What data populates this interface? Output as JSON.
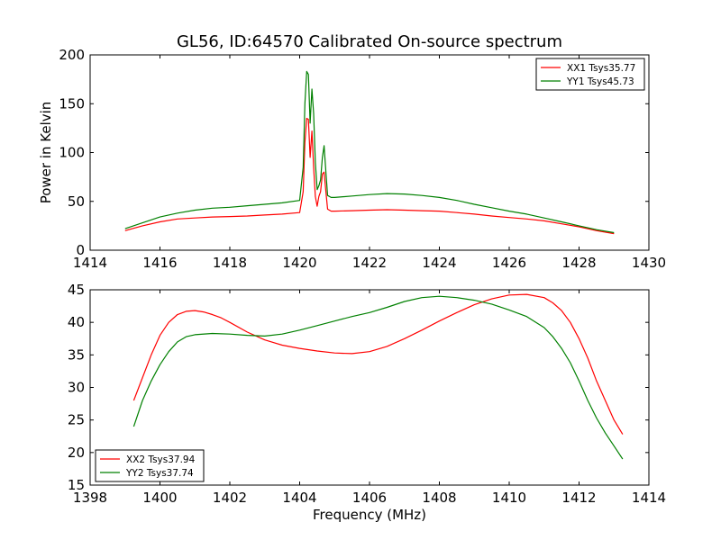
{
  "title": "GL56, ID:64570 Calibrated On-source spectrum",
  "chart_data": [
    {
      "type": "line",
      "ylabel": "Power in Kelvin",
      "xlabel": "",
      "xlim": [
        1414,
        1430
      ],
      "ylim": [
        0,
        200
      ],
      "xticks": [
        1414,
        1416,
        1418,
        1420,
        1422,
        1424,
        1426,
        1428,
        1430
      ],
      "yticks": [
        0,
        50,
        100,
        150,
        200
      ],
      "legend_position": "top-right",
      "series": [
        {
          "name": "XX1 Tsys35.77",
          "color": "#ff0000",
          "x": [
            1415.0,
            1415.5,
            1416.0,
            1416.5,
            1417.0,
            1417.5,
            1418.0,
            1418.5,
            1419.0,
            1419.5,
            1420.0,
            1420.1,
            1420.15,
            1420.2,
            1420.25,
            1420.3,
            1420.35,
            1420.4,
            1420.45,
            1420.5,
            1420.55,
            1420.6,
            1420.65,
            1420.7,
            1420.75,
            1420.8,
            1420.9,
            1421.0,
            1421.5,
            1422.0,
            1422.5,
            1423.0,
            1423.5,
            1424.0,
            1424.5,
            1425.0,
            1425.5,
            1426.0,
            1426.5,
            1427.0,
            1427.5,
            1428.0,
            1428.5,
            1429.0
          ],
          "values": [
            20,
            25,
            29,
            32,
            33,
            34,
            34.5,
            35,
            36,
            37,
            38.5,
            60,
            110,
            135,
            134,
            95,
            122,
            85,
            55,
            45,
            55,
            60,
            78,
            80,
            60,
            42,
            40,
            40,
            40.5,
            41,
            41.5,
            41,
            40.5,
            40,
            38.5,
            37,
            35,
            33.5,
            32,
            30,
            27,
            24,
            20,
            17
          ]
        },
        {
          "name": "YY1 Tsys45.73",
          "color": "#008000",
          "x": [
            1415.0,
            1415.5,
            1416.0,
            1416.5,
            1417.0,
            1417.5,
            1418.0,
            1418.5,
            1419.0,
            1419.5,
            1420.0,
            1420.1,
            1420.15,
            1420.2,
            1420.25,
            1420.3,
            1420.35,
            1420.4,
            1420.45,
            1420.5,
            1420.55,
            1420.6,
            1420.65,
            1420.7,
            1420.75,
            1420.8,
            1420.9,
            1421.0,
            1421.5,
            1422.0,
            1422.5,
            1423.0,
            1423.5,
            1424.0,
            1424.5,
            1425.0,
            1425.5,
            1426.0,
            1426.5,
            1427.0,
            1427.5,
            1428.0,
            1428.5,
            1429.0
          ],
          "values": [
            22,
            28,
            34,
            38,
            41,
            43,
            44,
            45.5,
            47,
            48.5,
            51,
            85,
            150,
            183,
            180,
            130,
            165,
            140,
            90,
            62,
            66,
            72,
            95,
            107,
            80,
            56,
            54,
            54,
            55.5,
            57,
            58,
            57.5,
            56,
            54,
            51,
            47,
            43.5,
            40,
            37,
            33,
            29,
            25,
            21,
            18
          ]
        }
      ]
    },
    {
      "type": "line",
      "ylabel": "",
      "xlabel": "Frequency (MHz)",
      "xlim": [
        1398,
        1414
      ],
      "ylim": [
        15,
        45
      ],
      "xticks": [
        1398,
        1400,
        1402,
        1404,
        1406,
        1408,
        1410,
        1412,
        1414
      ],
      "yticks": [
        15,
        20,
        25,
        30,
        35,
        40,
        45
      ],
      "legend_position": "bottom-left",
      "series": [
        {
          "name": "XX2 Tsys37.94",
          "color": "#ff0000",
          "x": [
            1399.25,
            1399.5,
            1399.75,
            1400.0,
            1400.25,
            1400.5,
            1400.75,
            1401.0,
            1401.25,
            1401.5,
            1401.75,
            1402.0,
            1402.5,
            1403.0,
            1403.5,
            1404.0,
            1404.5,
            1405.0,
            1405.5,
            1406.0,
            1406.5,
            1407.0,
            1407.5,
            1408.0,
            1408.5,
            1409.0,
            1409.5,
            1410.0,
            1410.5,
            1411.0,
            1411.25,
            1411.5,
            1411.75,
            1412.0,
            1412.25,
            1412.5,
            1412.75,
            1413.0,
            1413.25
          ],
          "values": [
            28,
            31.5,
            35,
            38,
            40,
            41.2,
            41.7,
            41.8,
            41.6,
            41.2,
            40.7,
            40,
            38.5,
            37.3,
            36.5,
            36,
            35.6,
            35.3,
            35.2,
            35.5,
            36.3,
            37.5,
            38.8,
            40.2,
            41.5,
            42.7,
            43.6,
            44.2,
            44.3,
            43.8,
            43,
            41.8,
            40,
            37.5,
            34.5,
            31,
            28,
            25,
            22.8
          ]
        },
        {
          "name": "YY2 Tsys37.74",
          "color": "#008000",
          "x": [
            1399.25,
            1399.5,
            1399.75,
            1400.0,
            1400.25,
            1400.5,
            1400.75,
            1401.0,
            1401.5,
            1402.0,
            1402.5,
            1403.0,
            1403.5,
            1404.0,
            1404.5,
            1405.0,
            1405.5,
            1406.0,
            1406.5,
            1407.0,
            1407.5,
            1408.0,
            1408.5,
            1409.0,
            1409.5,
            1410.0,
            1410.5,
            1411.0,
            1411.25,
            1411.5,
            1411.75,
            1412.0,
            1412.25,
            1412.5,
            1412.75,
            1413.0,
            1413.25
          ],
          "values": [
            24,
            28,
            31,
            33.5,
            35.5,
            37,
            37.8,
            38.1,
            38.3,
            38.2,
            38,
            37.9,
            38.2,
            38.8,
            39.5,
            40.2,
            40.9,
            41.5,
            42.3,
            43.2,
            43.8,
            44,
            43.8,
            43.4,
            42.8,
            41.9,
            40.9,
            39.2,
            37.8,
            36,
            33.8,
            31,
            28,
            25.3,
            23,
            21,
            19
          ]
        }
      ]
    }
  ]
}
